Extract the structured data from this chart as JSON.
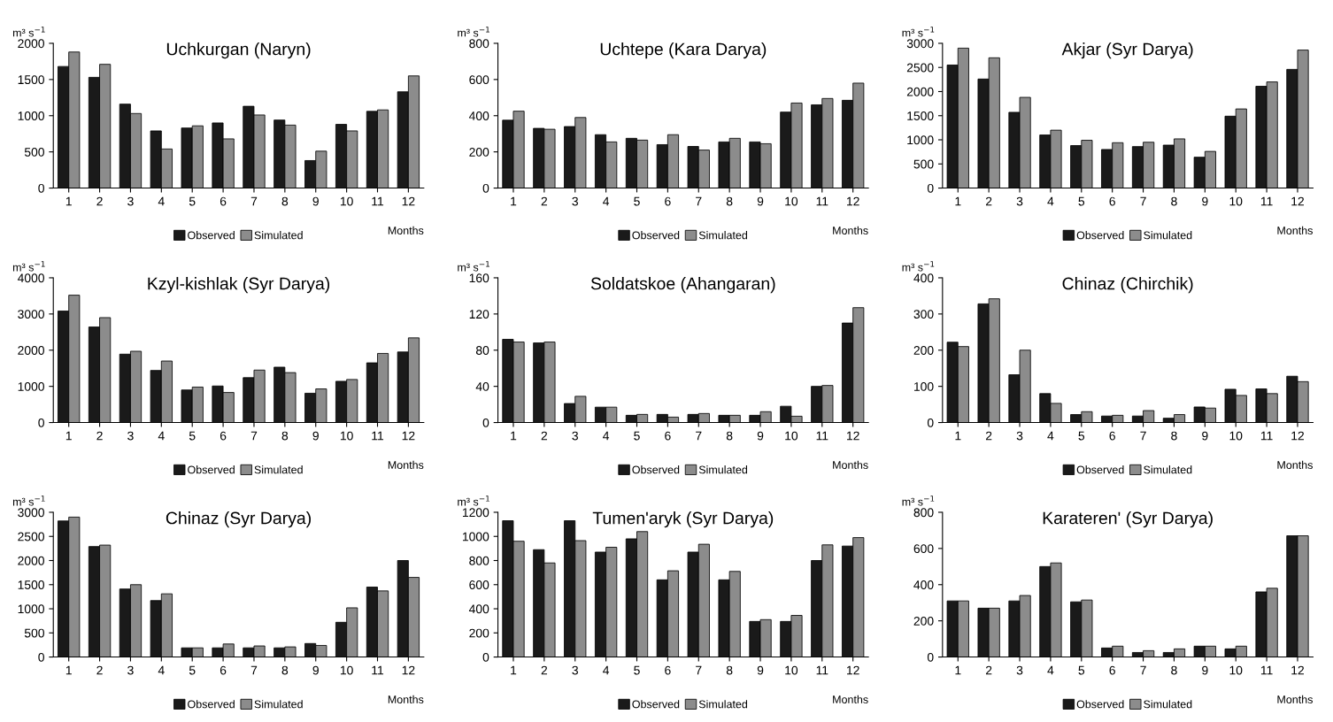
{
  "chart_data": [
    {
      "type": "bar",
      "title": "Uchkurgan (Naryn)",
      "ylabel": "m³ s$^{−1}$",
      "xlabel": "Months",
      "categories": [
        "1",
        "2",
        "3",
        "4",
        "5",
        "6",
        "7",
        "8",
        "9",
        "10",
        "11",
        "12"
      ],
      "ylim": [
        0,
        2000
      ],
      "yticks": [
        0,
        500,
        1000,
        1500,
        2000
      ],
      "legend": "bottom",
      "series": [
        {
          "name": "Observed",
          "color": "#1a1a1a",
          "values": [
            1680,
            1530,
            1160,
            790,
            830,
            900,
            1130,
            940,
            380,
            880,
            1060,
            1330
          ]
        },
        {
          "name": "Simulated",
          "color": "#8c8c8c",
          "values": [
            1880,
            1710,
            1030,
            540,
            860,
            680,
            1010,
            870,
            510,
            790,
            1080,
            1550
          ]
        }
      ]
    },
    {
      "type": "bar",
      "title": "Uchtepe (Kara Darya)",
      "ylabel": "m³ s$^{−1}$",
      "xlabel": "Months",
      "categories": [
        "1",
        "2",
        "3",
        "4",
        "5",
        "6",
        "7",
        "8",
        "9",
        "10",
        "11",
        "12"
      ],
      "ylim": [
        0,
        800
      ],
      "yticks": [
        0,
        200,
        400,
        600,
        800
      ],
      "legend": "bottom",
      "series": [
        {
          "name": "Observed",
          "color": "#1a1a1a",
          "values": [
            375,
            330,
            340,
            295,
            275,
            240,
            230,
            255,
            255,
            420,
            460,
            485
          ]
        },
        {
          "name": "Simulated",
          "color": "#8c8c8c",
          "values": [
            425,
            325,
            390,
            255,
            265,
            295,
            210,
            275,
            245,
            470,
            495,
            580
          ]
        }
      ]
    },
    {
      "type": "bar",
      "title": "Akjar (Syr Darya)",
      "ylabel": "m³ s$^{−1}$",
      "xlabel": "Months",
      "categories": [
        "1",
        "2",
        "3",
        "4",
        "5",
        "6",
        "7",
        "8",
        "9",
        "10",
        "11",
        "12"
      ],
      "ylim": [
        0,
        3000
      ],
      "yticks": [
        0,
        500,
        1000,
        1500,
        2000,
        2500,
        3000
      ],
      "legend": "bottom",
      "series": [
        {
          "name": "Observed",
          "color": "#1a1a1a",
          "values": [
            2550,
            2260,
            1570,
            1100,
            880,
            800,
            860,
            890,
            640,
            1490,
            2110,
            2460
          ]
        },
        {
          "name": "Simulated",
          "color": "#8c8c8c",
          "values": [
            2900,
            2700,
            1880,
            1200,
            990,
            940,
            950,
            1020,
            760,
            1640,
            2200,
            2860
          ]
        }
      ]
    },
    {
      "type": "bar",
      "title": "Kzyl-kishlak (Syr Darya)",
      "ylabel": "m³ s$^{−1}$",
      "xlabel": "Months",
      "categories": [
        "1",
        "2",
        "3",
        "4",
        "5",
        "6",
        "7",
        "8",
        "9",
        "10",
        "11",
        "12"
      ],
      "ylim": [
        0,
        4000
      ],
      "yticks": [
        0,
        1000,
        2000,
        3000,
        4000
      ],
      "legend": "bottom",
      "series": [
        {
          "name": "Observed",
          "color": "#1a1a1a",
          "values": [
            3080,
            2640,
            1890,
            1440,
            900,
            1010,
            1240,
            1530,
            810,
            1140,
            1650,
            1950
          ]
        },
        {
          "name": "Simulated",
          "color": "#8c8c8c",
          "values": [
            3520,
            2900,
            1970,
            1700,
            980,
            830,
            1450,
            1380,
            930,
            1190,
            1910,
            2340
          ]
        }
      ]
    },
    {
      "type": "bar",
      "title": "Soldatskoe (Ahangaran)",
      "ylabel": "m³ s$^{−1}$",
      "xlabel": "Months",
      "categories": [
        "1",
        "2",
        "3",
        "4",
        "5",
        "6",
        "7",
        "8",
        "9",
        "10",
        "11",
        "12"
      ],
      "ylim": [
        0,
        160
      ],
      "yticks": [
        0,
        40,
        80,
        120,
        160
      ],
      "legend": "bottom",
      "series": [
        {
          "name": "Observed",
          "color": "#1a1a1a",
          "values": [
            92,
            88,
            21,
            17,
            8,
            9,
            9,
            8,
            8,
            18,
            40,
            110
          ]
        },
        {
          "name": "Simulated",
          "color": "#8c8c8c",
          "values": [
            89,
            89,
            29,
            17,
            9,
            6,
            10,
            8,
            12,
            7,
            41,
            127
          ]
        }
      ]
    },
    {
      "type": "bar",
      "title": "Chinaz (Chirchik)",
      "ylabel": "m³ s$^{−1}$",
      "xlabel": "Months",
      "categories": [
        "1",
        "2",
        "3",
        "4",
        "5",
        "6",
        "7",
        "8",
        "9",
        "10",
        "11",
        "12"
      ],
      "ylim": [
        0,
        400
      ],
      "yticks": [
        0,
        100,
        200,
        300,
        400
      ],
      "legend": "bottom",
      "series": [
        {
          "name": "Observed",
          "color": "#1a1a1a",
          "values": [
            222,
            328,
            132,
            80,
            22,
            18,
            18,
            12,
            43,
            92,
            93,
            128
          ]
        },
        {
          "name": "Simulated",
          "color": "#8c8c8c",
          "values": [
            210,
            342,
            200,
            53,
            30,
            20,
            33,
            22,
            40,
            75,
            80,
            113
          ]
        }
      ]
    },
    {
      "type": "bar",
      "title": "Chinaz (Syr Darya)",
      "ylabel": "m³ s$^{−1}$",
      "xlabel": "Months",
      "categories": [
        "1",
        "2",
        "3",
        "4",
        "5",
        "6",
        "7",
        "8",
        "9",
        "10",
        "11",
        "12"
      ],
      "ylim": [
        0,
        3000
      ],
      "yticks": [
        0,
        500,
        1000,
        1500,
        2000,
        2500,
        3000
      ],
      "legend": "bottom",
      "series": [
        {
          "name": "Observed",
          "color": "#1a1a1a",
          "values": [
            2820,
            2290,
            1410,
            1170,
            190,
            190,
            190,
            190,
            280,
            720,
            1450,
            2000
          ]
        },
        {
          "name": "Simulated",
          "color": "#8c8c8c",
          "values": [
            2900,
            2320,
            1500,
            1310,
            190,
            270,
            230,
            210,
            240,
            1020,
            1370,
            1650
          ]
        }
      ]
    },
    {
      "type": "bar",
      "title": "Tumen'aryk (Syr Darya)",
      "ylabel": "m³ s$^{−1}$",
      "xlabel": "Months",
      "categories": [
        "1",
        "2",
        "3",
        "4",
        "5",
        "6",
        "7",
        "8",
        "9",
        "10",
        "11",
        "12"
      ],
      "ylim": [
        0,
        1200
      ],
      "yticks": [
        0,
        200,
        400,
        600,
        800,
        1000,
        1200
      ],
      "legend": "bottom",
      "series": [
        {
          "name": "Observed",
          "color": "#1a1a1a",
          "values": [
            1130,
            890,
            1130,
            870,
            980,
            640,
            870,
            640,
            295,
            295,
            800,
            920
          ]
        },
        {
          "name": "Simulated",
          "color": "#8c8c8c",
          "values": [
            960,
            780,
            965,
            910,
            1040,
            715,
            935,
            710,
            310,
            345,
            930,
            990
          ]
        }
      ]
    },
    {
      "type": "bar",
      "title": "Karateren' (Syr Darya)",
      "ylabel": "m³ s$^{−1}$",
      "xlabel": "Months",
      "categories": [
        "1",
        "2",
        "3",
        "4",
        "5",
        "6",
        "7",
        "8",
        "9",
        "10",
        "11",
        "12"
      ],
      "ylim": [
        0,
        800
      ],
      "yticks": [
        0,
        200,
        400,
        600,
        800
      ],
      "legend": "bottom",
      "series": [
        {
          "name": "Observed",
          "color": "#1a1a1a",
          "values": [
            310,
            270,
            310,
            500,
            305,
            50,
            25,
            25,
            60,
            45,
            360,
            670
          ]
        },
        {
          "name": "Simulated",
          "color": "#8c8c8c",
          "values": [
            310,
            270,
            340,
            520,
            315,
            60,
            35,
            45,
            60,
            60,
            380,
            670
          ]
        }
      ]
    }
  ]
}
